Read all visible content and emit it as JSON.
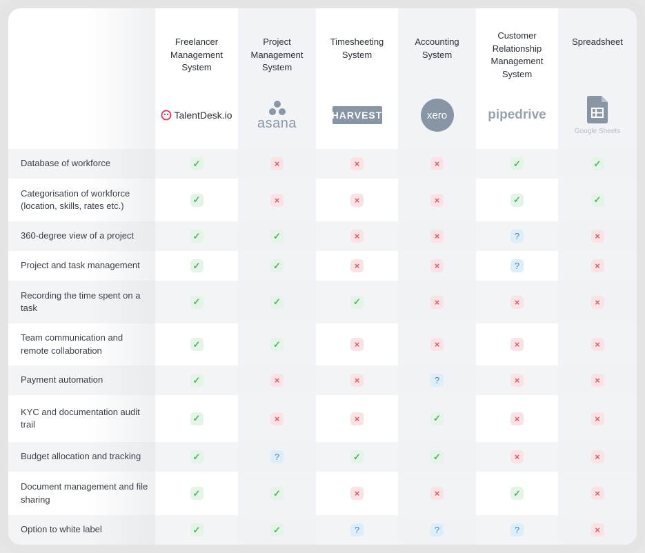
{
  "columns": [
    {
      "title": "Freelancer Management System",
      "logo": "TalentDesk.io"
    },
    {
      "title": "Project Management System",
      "logo": "asana"
    },
    {
      "title": "Timesheeting System",
      "logo": "HARVEST"
    },
    {
      "title": "Accounting System",
      "logo": "xero"
    },
    {
      "title": "Customer Relationship Management System",
      "logo": "pipedrive"
    },
    {
      "title": "Spreadsheet",
      "logo": "Google Sheets"
    }
  ],
  "rows": [
    {
      "label": "Database of workforce",
      "marks": [
        "yes",
        "no",
        "no",
        "no",
        "yes",
        "yes"
      ]
    },
    {
      "label": "Categorisation of workforce (location, skills, rates etc.)",
      "marks": [
        "yes",
        "no",
        "no",
        "no",
        "yes",
        "yes"
      ]
    },
    {
      "label": "360-degree view of a project",
      "marks": [
        "yes",
        "yes",
        "no",
        "no",
        "maybe",
        "no"
      ]
    },
    {
      "label": "Project and task management",
      "marks": [
        "yes",
        "yes",
        "no",
        "no",
        "maybe",
        "no"
      ]
    },
    {
      "label": "Recording the time spent on a task",
      "marks": [
        "yes",
        "yes",
        "yes",
        "no",
        "no",
        "no"
      ]
    },
    {
      "label": "Team communication and remote collaboration",
      "marks": [
        "yes",
        "yes",
        "no",
        "no",
        "no",
        "no"
      ]
    },
    {
      "label": "Payment automation",
      "marks": [
        "yes",
        "no",
        "no",
        "maybe",
        "no",
        "no"
      ]
    },
    {
      "label": "KYC and documentation audit trail",
      "marks": [
        "yes",
        "no",
        "no",
        "yes",
        "no",
        "no"
      ]
    },
    {
      "label": "Budget allocation and tracking",
      "marks": [
        "yes",
        "maybe",
        "yes",
        "yes",
        "no",
        "no"
      ]
    },
    {
      "label": "Document management and file sharing",
      "marks": [
        "yes",
        "yes",
        "no",
        "no",
        "yes",
        "no"
      ]
    },
    {
      "label": "Option to white label",
      "marks": [
        "yes",
        "yes",
        "maybe",
        "maybe",
        "maybe",
        "no"
      ]
    }
  ],
  "symbols": {
    "yes": "✓",
    "no": "×",
    "maybe": "?"
  }
}
